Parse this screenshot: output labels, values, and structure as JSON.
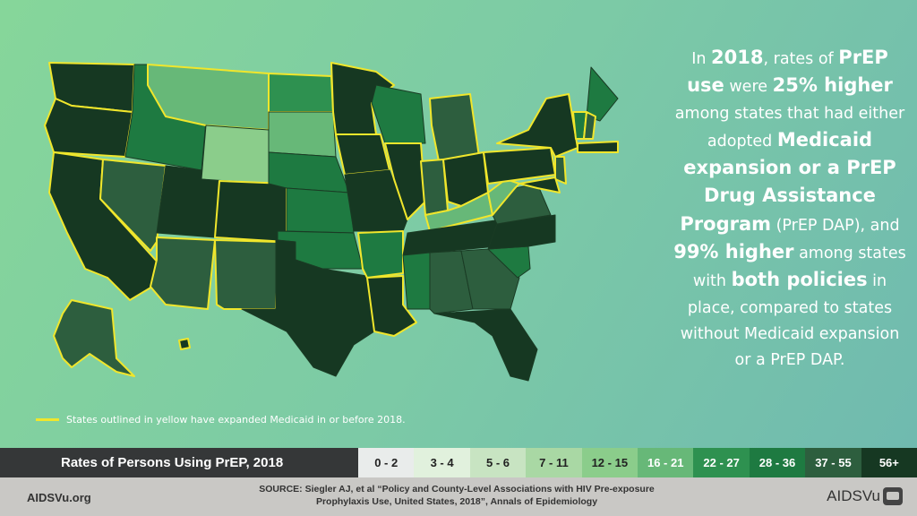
{
  "legend": {
    "title": "Rates of Persons Using PrEP, 2018",
    "bins": [
      {
        "label": "0 - 2",
        "color": "#e9eceb",
        "text": "#222"
      },
      {
        "label": "3 - 4",
        "color": "#e1f1dd",
        "text": "#222"
      },
      {
        "label": "5 - 6",
        "color": "#c8e4c2",
        "text": "#222"
      },
      {
        "label": "7 - 11",
        "color": "#a9d8a4",
        "text": "#222"
      },
      {
        "label": "12 - 15",
        "color": "#8bcd8b",
        "text": "#222"
      },
      {
        "label": "16 - 21",
        "color": "#67b878",
        "text": "#fff"
      },
      {
        "label": "22 - 27",
        "color": "#2e9150",
        "text": "#fff"
      },
      {
        "label": "28 - 36",
        "color": "#1e7a41",
        "text": "#fff"
      },
      {
        "label": "37 - 55",
        "color": "#2d5e3e",
        "text": "#fff"
      },
      {
        "label": "56+",
        "color": "#163822",
        "text": "#fff"
      }
    ]
  },
  "map": {
    "note": "States outlined in yellow have expanded Medicaid in or before 2018.",
    "outline_color": "#f0e62c",
    "states": {
      "WA": {
        "bin": "56+",
        "expanded": true
      },
      "OR": {
        "bin": "56+",
        "expanded": true
      },
      "CA": {
        "bin": "56+",
        "expanded": true
      },
      "NV": {
        "bin": "37 - 55",
        "expanded": true
      },
      "ID": {
        "bin": "28 - 36",
        "expanded": false
      },
      "MT": {
        "bin": "16 - 21",
        "expanded": true
      },
      "WY": {
        "bin": "12 - 15",
        "expanded": false
      },
      "UT": {
        "bin": "56+",
        "expanded": false
      },
      "CO": {
        "bin": "56+",
        "expanded": true
      },
      "AZ": {
        "bin": "37 - 55",
        "expanded": true
      },
      "NM": {
        "bin": "37 - 55",
        "expanded": true
      },
      "ND": {
        "bin": "22 - 27",
        "expanded": true
      },
      "SD": {
        "bin": "16 - 21",
        "expanded": false
      },
      "NE": {
        "bin": "28 - 36",
        "expanded": false
      },
      "KS": {
        "bin": "28 - 36",
        "expanded": false
      },
      "OK": {
        "bin": "28 - 36",
        "expanded": false
      },
      "TX": {
        "bin": "56+",
        "expanded": false
      },
      "MN": {
        "bin": "56+",
        "expanded": true
      },
      "IA": {
        "bin": "56+",
        "expanded": true
      },
      "MO": {
        "bin": "56+",
        "expanded": false
      },
      "AR": {
        "bin": "28 - 36",
        "expanded": true
      },
      "LA": {
        "bin": "56+",
        "expanded": true
      },
      "WI": {
        "bin": "28 - 36",
        "expanded": false
      },
      "IL": {
        "bin": "56+",
        "expanded": true
      },
      "MI": {
        "bin": "37 - 55",
        "expanded": true
      },
      "IN": {
        "bin": "37 - 55",
        "expanded": true
      },
      "OH": {
        "bin": "56+",
        "expanded": true
      },
      "KY": {
        "bin": "16 - 21",
        "expanded": true
      },
      "TN": {
        "bin": "56+",
        "expanded": false
      },
      "MS": {
        "bin": "28 - 36",
        "expanded": false
      },
      "AL": {
        "bin": "37 - 55",
        "expanded": false
      },
      "GA": {
        "bin": "37 - 55",
        "expanded": false
      },
      "FL": {
        "bin": "56+",
        "expanded": false
      },
      "SC": {
        "bin": "28 - 36",
        "expanded": false
      },
      "NC": {
        "bin": "56+",
        "expanded": false
      },
      "VA": {
        "bin": "37 - 55",
        "expanded": false
      },
      "WV": {
        "bin": "16 - 21",
        "expanded": true
      },
      "PA": {
        "bin": "56+",
        "expanded": true
      },
      "NY": {
        "bin": "56+",
        "expanded": true
      },
      "ME": {
        "bin": "28 - 36",
        "expanded": false
      },
      "VT": {
        "bin": "28 - 36",
        "expanded": true
      },
      "NH": {
        "bin": "37 - 55",
        "expanded": true
      },
      "MA": {
        "bin": "56+",
        "expanded": true
      },
      "NJ": {
        "bin": "37 - 55",
        "expanded": true
      },
      "MD": {
        "bin": "56+",
        "expanded": true
      },
      "AK": {
        "bin": "37 - 55",
        "expanded": true
      },
      "HI": {
        "bin": "56+",
        "expanded": true
      }
    }
  },
  "blurb": [
    {
      "t": "In ",
      "b": false
    },
    {
      "t": "2018",
      "b": true
    },
    {
      "t": ", rates of ",
      "b": false
    },
    {
      "t": "PrEP use",
      "b": true
    },
    {
      "t": " were ",
      "b": false
    },
    {
      "t": "25% higher",
      "b": true
    },
    {
      "t": " among states that had either adopted ",
      "b": false
    },
    {
      "t": "Medicaid expansion or a PrEP Drug Assistance Program",
      "b": true
    },
    {
      "t": " (PrEP DAP), and ",
      "b": false
    },
    {
      "t": "99% higher",
      "b": true
    },
    {
      "t": " among states with ",
      "b": false
    },
    {
      "t": "both policies",
      "b": true
    },
    {
      "t": " in place, compared to states without Medicaid expansion or a PrEP DAP.",
      "b": false
    }
  ],
  "footer": {
    "site": "AIDSVu.org",
    "source_line1": "SOURCE: Siegler AJ, et al “Policy and County-Level Associations with HIV Pre-exposure",
    "source_line2": "Prophylaxis Use, United States, 2018”, Annals of Epidemiology",
    "logo": "AIDSVu"
  }
}
